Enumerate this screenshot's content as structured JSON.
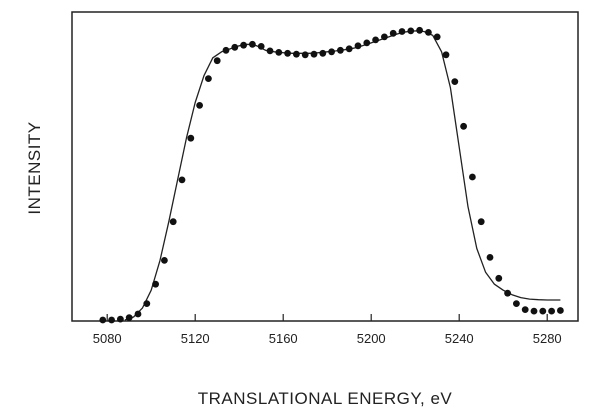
{
  "chart_data": {
    "type": "scatter",
    "title": "",
    "xlabel": "TRANSLATIONAL ENERGY, eV",
    "ylabel": "INTENSITY",
    "xlim": [
      5064,
      5294
    ],
    "ylim": [
      0,
      1
    ],
    "x_ticks": [
      5080,
      5120,
      5160,
      5200,
      5240,
      5280
    ],
    "y_ticks": [],
    "grid": false,
    "legend": "none",
    "colors": {
      "axes": "#222222",
      "curve": "#222222",
      "points": "#111111"
    },
    "series": [
      {
        "style": "line",
        "x": [
          5088,
          5092,
          5096,
          5100,
          5104,
          5108,
          5112,
          5116,
          5120,
          5124,
          5128,
          5132,
          5136,
          5140,
          5144,
          5148,
          5152,
          5156,
          5160,
          5164,
          5168,
          5172,
          5176,
          5180,
          5184,
          5188,
          5192,
          5196,
          5200,
          5204,
          5208,
          5212,
          5216,
          5220,
          5224,
          5228,
          5232,
          5236,
          5240,
          5244,
          5248,
          5252,
          5256,
          5260,
          5264,
          5268,
          5272,
          5276,
          5280,
          5286
        ],
        "y": [
          0.0,
          0.01,
          0.04,
          0.1,
          0.2,
          0.33,
          0.47,
          0.61,
          0.73,
          0.82,
          0.88,
          0.9,
          0.91,
          0.92,
          0.925,
          0.92,
          0.905,
          0.9,
          0.897,
          0.895,
          0.895,
          0.895,
          0.897,
          0.9,
          0.903,
          0.907,
          0.912,
          0.92,
          0.93,
          0.94,
          0.95,
          0.96,
          0.967,
          0.97,
          0.968,
          0.955,
          0.9,
          0.78,
          0.58,
          0.38,
          0.24,
          0.16,
          0.12,
          0.1,
          0.085,
          0.075,
          0.07,
          0.068,
          0.067,
          0.067
        ]
      },
      {
        "style": "points",
        "x": [
          5078,
          5082,
          5086,
          5090,
          5094,
          5098,
          5102,
          5106,
          5110,
          5114,
          5118,
          5122,
          5126,
          5130,
          5134,
          5138,
          5142,
          5146,
          5150,
          5154,
          5158,
          5162,
          5166,
          5170,
          5174,
          5178,
          5182,
          5186,
          5190,
          5194,
          5198,
          5202,
          5206,
          5210,
          5214,
          5218,
          5222,
          5226,
          5230,
          5234,
          5238,
          5242,
          5246,
          5250,
          5254,
          5258,
          5262,
          5266,
          5270,
          5274,
          5278,
          5282,
          5286
        ],
        "y": [
          0.0,
          0.0,
          0.003,
          0.008,
          0.02,
          0.055,
          0.12,
          0.2,
          0.33,
          0.47,
          0.61,
          0.72,
          0.81,
          0.87,
          0.905,
          0.915,
          0.922,
          0.925,
          0.918,
          0.903,
          0.898,
          0.895,
          0.892,
          0.89,
          0.892,
          0.895,
          0.9,
          0.905,
          0.91,
          0.92,
          0.93,
          0.94,
          0.95,
          0.962,
          0.968,
          0.97,
          0.972,
          0.965,
          0.95,
          0.89,
          0.8,
          0.65,
          0.48,
          0.33,
          0.21,
          0.14,
          0.09,
          0.055,
          0.035,
          0.03,
          0.03,
          0.03,
          0.032
        ]
      }
    ]
  }
}
